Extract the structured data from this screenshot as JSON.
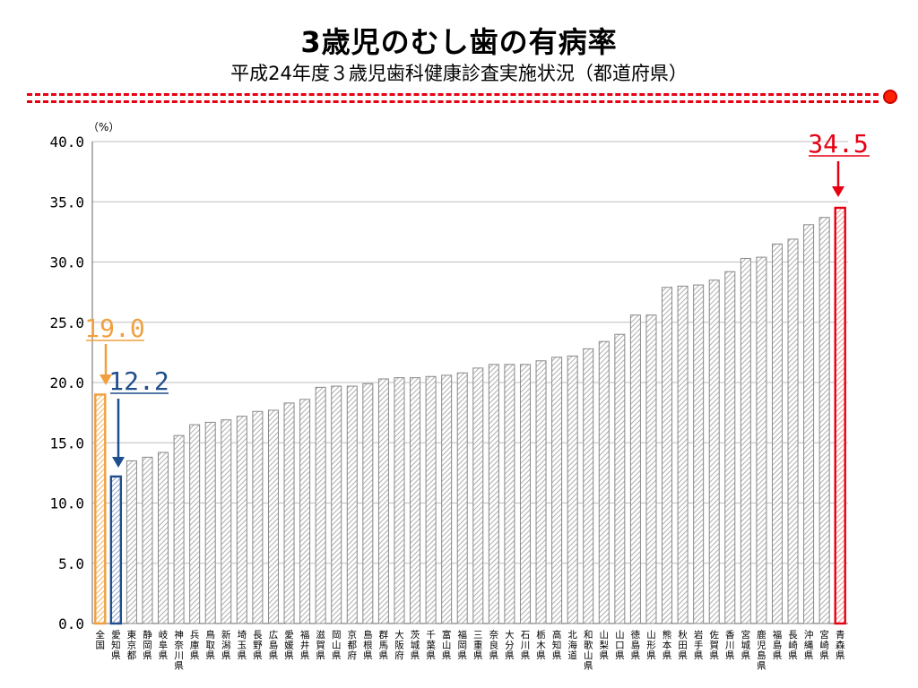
{
  "header": {
    "title": "3歳児のむし歯の有病率",
    "subtitle": "平成24年度３歳児歯科健康診査実施状況（都道府県）"
  },
  "colors": {
    "accent_red": "#e60012",
    "highlight_orange": "#f0a040",
    "highlight_blue": "#1f4e8c",
    "bar_default": "#888888"
  },
  "chart_data": {
    "type": "bar",
    "unit_label": "（%）",
    "ylim": [
      0,
      40
    ],
    "yticks": [
      "0.0",
      "5.0",
      "10.0",
      "15.0",
      "20.0",
      "25.0",
      "30.0",
      "35.0",
      "40.0"
    ],
    "grid": true,
    "categories": [
      "全国",
      "愛知県",
      "東京都",
      "静岡県",
      "岐阜県",
      "神奈川県",
      "兵庫県",
      "鳥取県",
      "新潟県",
      "埼玉県",
      "長野県",
      "広島県",
      "愛媛県",
      "福井県",
      "滋賀県",
      "岡山県",
      "京都府",
      "島根県",
      "群馬県",
      "大阪府",
      "茨城県",
      "千葉県",
      "富山県",
      "福岡県",
      "三重県",
      "奈良県",
      "大分県",
      "石川県",
      "栃木県",
      "高知県",
      "北海道",
      "和歌山県",
      "山梨県",
      "山口県",
      "徳島県",
      "山形県",
      "熊本県",
      "秋田県",
      "岩手県",
      "佐賀県",
      "香川県",
      "宮城県",
      "鹿児島県",
      "福島県",
      "長崎県",
      "沖縄県",
      "宮崎県",
      "青森県"
    ],
    "values": [
      19.0,
      12.2,
      13.5,
      13.8,
      14.2,
      15.6,
      16.5,
      16.7,
      16.9,
      17.2,
      17.6,
      17.7,
      18.3,
      18.6,
      19.6,
      19.7,
      19.7,
      19.9,
      20.3,
      20.4,
      20.4,
      20.5,
      20.6,
      20.8,
      21.2,
      21.5,
      21.5,
      21.5,
      21.8,
      22.1,
      22.2,
      22.8,
      23.4,
      24.0,
      25.6,
      25.6,
      27.9,
      28.0,
      28.1,
      28.5,
      29.2,
      30.3,
      30.4,
      31.5,
      31.9,
      33.1,
      33.7,
      34.5
    ],
    "highlights": [
      {
        "category": "全国",
        "label": "19.0",
        "color": "orange"
      },
      {
        "category": "愛知県",
        "label": "12.2",
        "color": "blue"
      },
      {
        "category": "青森県",
        "label": "34.5",
        "color": "red"
      }
    ]
  }
}
